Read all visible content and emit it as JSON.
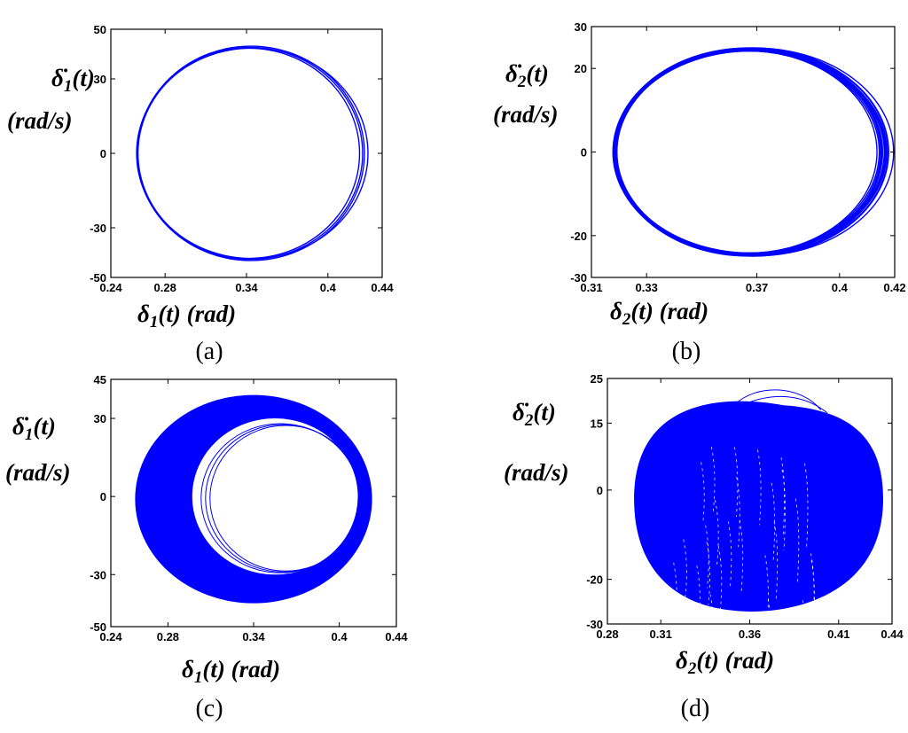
{
  "chart_data": [
    {
      "type": "line",
      "caption": "(a)",
      "xlabel": "δ1(t) (rad)",
      "ylabel_line1": "δ̇1(t)",
      "ylabel_line2": "(rad/s)",
      "xlim": [
        0.24,
        0.44
      ],
      "ylim": [
        -50,
        50
      ],
      "xticks": [
        0.24,
        0.28,
        0.34,
        0.4,
        0.44
      ],
      "yticks": [
        50,
        30,
        0,
        -30,
        -50
      ],
      "xticklabels": [
        "0.24",
        "0.28",
        "0.34",
        "0.4",
        "0.44"
      ],
      "yticklabels": [
        "50",
        "30",
        "0",
        "-30",
        "-50"
      ],
      "series": [
        {
          "style": "limit-cycle",
          "center": [
            0.343,
            0
          ],
          "rx": 0.0835,
          "ry": 42.5,
          "rings": 4,
          "jitter": 0.003
        }
      ]
    },
    {
      "type": "line",
      "caption": "(b)",
      "xlabel": "δ2(t) (rad)",
      "ylabel_line1": "δ̇2(t)",
      "ylabel_line2": "(rad/s)",
      "xlim": [
        0.31,
        0.42
      ],
      "ylim": [
        -30,
        30
      ],
      "xticks": [
        0.31,
        0.33,
        0.37,
        0.4,
        0.42
      ],
      "yticks": [
        30,
        20,
        0,
        -20,
        -30
      ],
      "xticklabels": [
        "0.31",
        "0.33",
        "0.37",
        "0.4",
        "0.42"
      ],
      "yticklabels": [
        "30",
        "20",
        "0",
        "-20",
        "-30"
      ],
      "series": [
        {
          "style": "limit-cycle",
          "center": [
            0.3675,
            0
          ],
          "rx": 0.049,
          "ry": 24.5,
          "rings": 18,
          "jitter": 0.004
        }
      ]
    },
    {
      "type": "area",
      "caption": "(c)",
      "xlabel": "δ1(t) (rad)",
      "ylabel_line1": "δ̇1(t)",
      "ylabel_line2": "(rad/s)",
      "xlim": [
        0.24,
        0.44
      ],
      "ylim": [
        -50,
        45
      ],
      "xticks": [
        0.24,
        0.28,
        0.34,
        0.4,
        0.44
      ],
      "yticks": [
        45,
        30,
        0,
        -30,
        -50
      ],
      "xticklabels": [
        "0.24",
        "0.28",
        "0.34",
        "0.4",
        "0.44"
      ],
      "yticklabels": [
        "45",
        "30",
        "0",
        "-30",
        "-50"
      ],
      "series": [
        {
          "style": "annulus",
          "outer_center": [
            0.34,
            -1
          ],
          "outer_rx": 0.083,
          "outer_ry": 40,
          "inner_center": [
            0.355,
            0
          ],
          "inner_rx": 0.058,
          "inner_ry": 30
        }
      ]
    },
    {
      "type": "area",
      "caption": "(d)",
      "xlabel": "δ2(t) (rad)",
      "ylabel_line1": "δ̇2(t)",
      "ylabel_line2": "(rad/s)",
      "xlim": [
        0.28,
        0.44
      ],
      "ylim": [
        -30,
        25
      ],
      "xticks": [
        0.28,
        0.31,
        0.36,
        0.41,
        0.44
      ],
      "yticks": [
        25,
        15,
        0,
        -20,
        -30
      ],
      "xticklabels": [
        "0.28",
        "0.31",
        "0.36",
        "0.41",
        "0.44"
      ],
      "yticklabels": [
        "25",
        "15",
        "0",
        "-20",
        "-30"
      ],
      "series": [
        {
          "style": "filled-blob",
          "center": [
            0.365,
            -2
          ],
          "rx": 0.07,
          "ry_top": 21,
          "ry_bottom": 25
        }
      ]
    }
  ],
  "colors": {
    "trajectory": "#0000ff",
    "axis": "#000000"
  }
}
